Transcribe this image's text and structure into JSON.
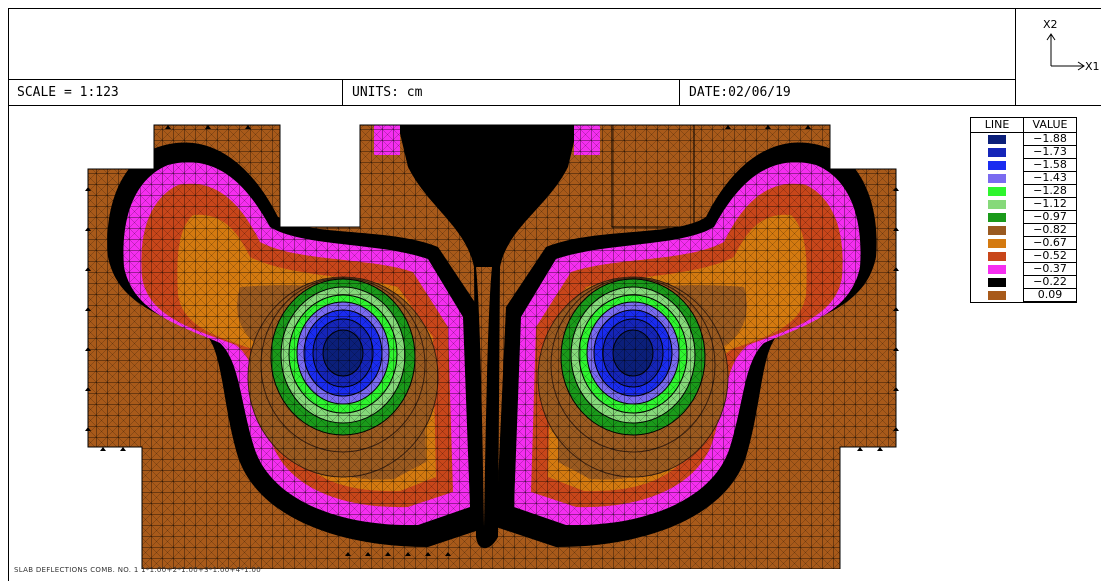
{
  "header": {
    "scale": "SCALE = 1:123",
    "units": "UNITS: cm",
    "date": "DATE:02/06/19",
    "axis_x": "X1",
    "axis_y": "X2"
  },
  "legend": {
    "col_line": "LINE",
    "col_value": "VALUE",
    "entries": [
      {
        "value": "−1.88",
        "color": "#0b1f7a"
      },
      {
        "value": "−1.73",
        "color": "#1525b8"
      },
      {
        "value": "−1.58",
        "color": "#1a2cf0"
      },
      {
        "value": "−1.43",
        "color": "#7a6bf0"
      },
      {
        "value": "−1.28",
        "color": "#2ef52e"
      },
      {
        "value": "−1.12",
        "color": "#86d97a"
      },
      {
        "value": "−0.97",
        "color": "#1a9a1a"
      },
      {
        "value": "−0.82",
        "color": "#9a5a20"
      },
      {
        "value": "−0.67",
        "color": "#d47a10"
      },
      {
        "value": "−0.52",
        "color": "#c8461a"
      },
      {
        "value": "−0.37",
        "color": "#f52ef0"
      },
      {
        "value": "−0.22",
        "color": "#000000"
      },
      {
        "value": "0.09",
        "color": "#a85a1a"
      }
    ]
  },
  "footer": {
    "text": "SLAB DEFLECTIONS  COMB. NO. 1  1*1.00+2*1.00+3*1.00+4*1.00"
  }
}
